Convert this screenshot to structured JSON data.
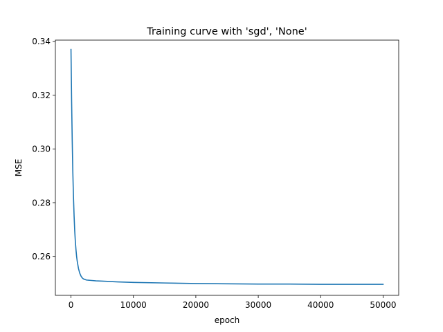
{
  "chart_data": {
    "type": "line",
    "title": "Training curve with 'sgd', 'None'",
    "xlabel": "epoch",
    "ylabel": "MSE",
    "xlim": [
      -2500,
      52500
    ],
    "ylim": [
      0.2455,
      0.3405
    ],
    "xticks": [
      0,
      10000,
      20000,
      30000,
      40000,
      50000
    ],
    "xtick_labels": [
      "0",
      "10000",
      "20000",
      "30000",
      "40000",
      "50000"
    ],
    "yticks": [
      0.26,
      0.28,
      0.3,
      0.32,
      0.34
    ],
    "ytick_labels": [
      "0.26",
      "0.28",
      "0.30",
      "0.32",
      "0.34"
    ],
    "grid": false,
    "legend": "none",
    "series": [
      {
        "color": "#1f77b4",
        "x": [
          0,
          100,
          200,
          300,
          400,
          500,
          600,
          700,
          800,
          900,
          1000,
          1200,
          1400,
          1600,
          1800,
          2000,
          2500,
          3000,
          4000,
          5000,
          7500,
          10000,
          15000,
          20000,
          25000,
          30000,
          35000,
          40000,
          45000,
          50000
        ],
        "y": [
          0.337,
          0.318,
          0.303,
          0.291,
          0.282,
          0.275,
          0.2695,
          0.2655,
          0.2625,
          0.26,
          0.2582,
          0.2555,
          0.2538,
          0.2527,
          0.252,
          0.2516,
          0.2512,
          0.2511,
          0.2509,
          0.2508,
          0.2505,
          0.2503,
          0.2501,
          0.2499,
          0.2498,
          0.2497,
          0.2497,
          0.2496,
          0.2496,
          0.2496
        ]
      }
    ]
  }
}
